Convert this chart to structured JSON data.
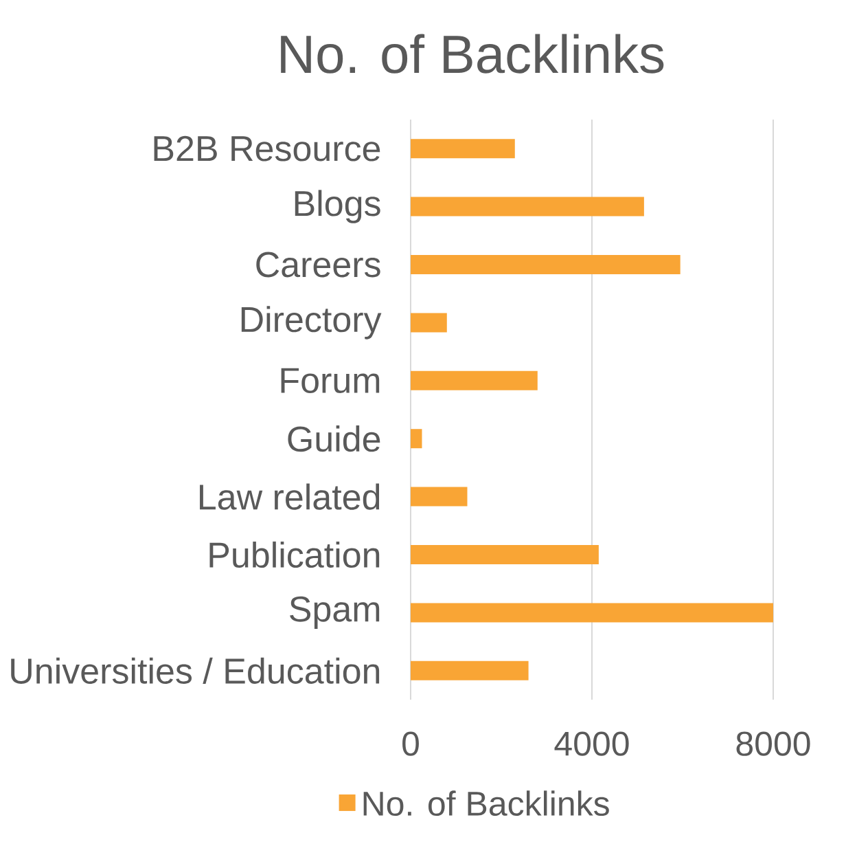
{
  "chart_data": {
    "type": "bar",
    "orientation": "horizontal",
    "title": "No. of Backlinks",
    "categories": [
      "B2B Resource",
      "Blogs",
      "Careers",
      "Directory",
      "Forum",
      "Guide",
      "Law related",
      "Publication",
      "Spam",
      "Universities / Education"
    ],
    "series": [
      {
        "name": "No. of Backlinks",
        "color": "#f9a535",
        "values": [
          2300,
          5150,
          5950,
          800,
          2800,
          250,
          1250,
          4150,
          8000,
          2600
        ]
      }
    ],
    "xlim": [
      0,
      8000
    ],
    "xticks": [
      0,
      4000,
      8000
    ],
    "grid": "x",
    "legend": "bottom"
  }
}
